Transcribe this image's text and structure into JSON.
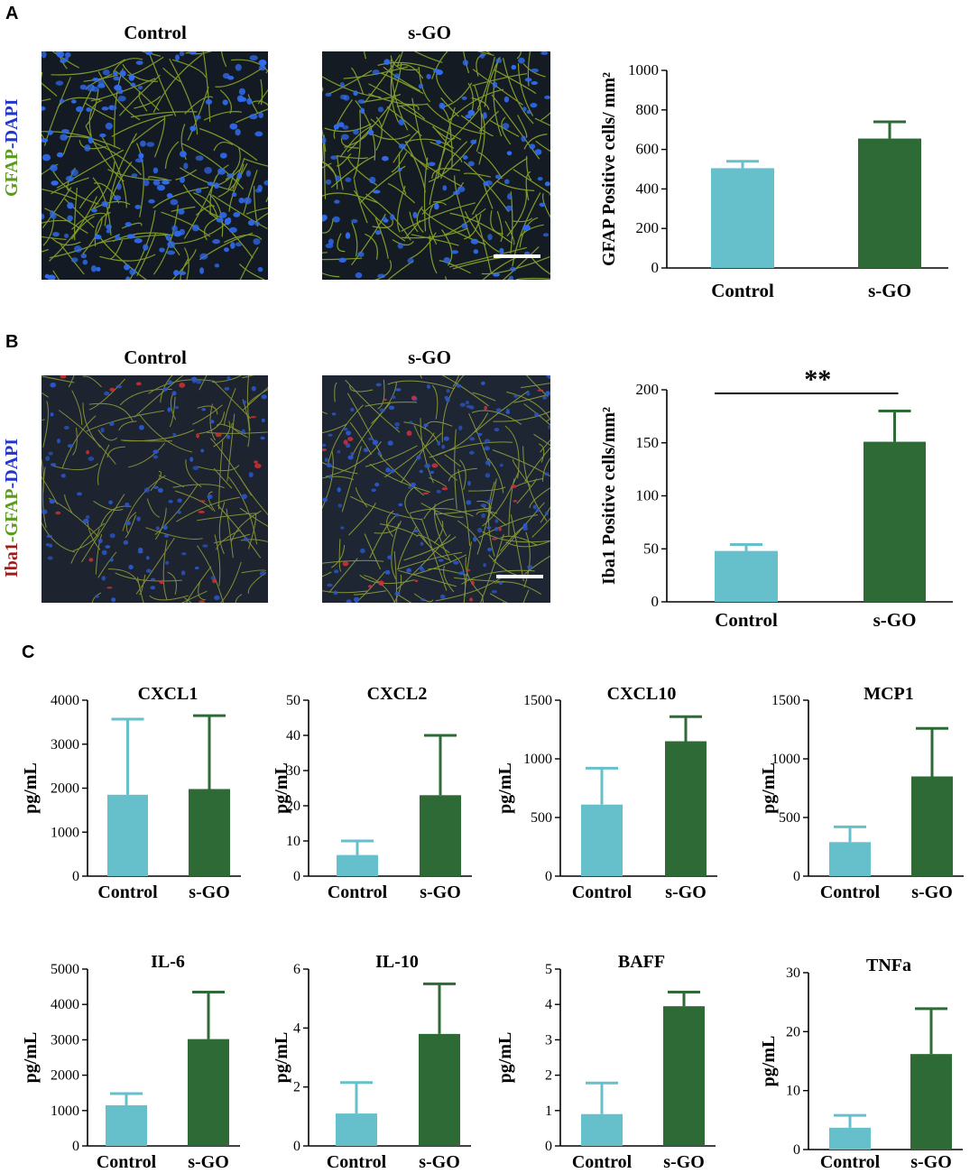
{
  "panels": {
    "a": {
      "letter": "A",
      "image_titles": [
        "Control",
        "s-GO"
      ],
      "stain": [
        {
          "text": "GFAP",
          "color": "#5a9a1f"
        },
        {
          "text": "-DAPI",
          "color": "#2135c8"
        }
      ]
    },
    "b": {
      "letter": "B",
      "image_titles": [
        "Control",
        "s-GO"
      ],
      "stain": [
        {
          "text": "Iba1",
          "color": "#9a1d1d"
        },
        {
          "text": "-",
          "color": "#5a9a1f"
        },
        {
          "text": "GFAP",
          "color": "#5a9a1f"
        },
        {
          "text": "-DAPI",
          "color": "#2135c8"
        }
      ]
    },
    "c": {
      "letter": "C"
    }
  },
  "colors": {
    "control": "#66c0cc",
    "sgo": "#2e6a35"
  },
  "chart_data": [
    {
      "id": "gfap",
      "type": "bar",
      "title": "",
      "ylabel": "GFAP Positive cells/ mm²",
      "categories": [
        "Control",
        "s-GO"
      ],
      "values": [
        505,
        655
      ],
      "errors": [
        35,
        85
      ],
      "ylim": [
        0,
        1000
      ],
      "yticks": [
        0,
        200,
        400,
        600,
        800,
        1000
      ],
      "ytick_labels": [
        "0",
        "200",
        "400",
        "600",
        "800",
        "1000"
      ]
    },
    {
      "id": "iba1",
      "type": "bar",
      "title": "",
      "ylabel": "Iba1 Positive cells/mm²",
      "categories": [
        "Control",
        "s-GO"
      ],
      "values": [
        48,
        151
      ],
      "errors": [
        6,
        29
      ],
      "ylim": [
        0,
        200
      ],
      "yticks": [
        0,
        50,
        100,
        150,
        200
      ],
      "ytick_labels": [
        "0",
        "50",
        "100",
        "150",
        "200"
      ],
      "significance": "**"
    },
    {
      "id": "cxcl1",
      "type": "bar",
      "title": "CXCL1",
      "ylabel": "pg/mL",
      "categories": [
        "Control",
        "s-GO"
      ],
      "values": [
        1850,
        1980
      ],
      "errors": [
        1720,
        1670
      ],
      "ylim": [
        0,
        4000
      ],
      "yticks": [
        0,
        1000,
        2000,
        3000,
        4000
      ],
      "ytick_labels": [
        "0",
        "1000",
        "2000",
        "3000",
        "4000"
      ]
    },
    {
      "id": "cxcl2",
      "type": "bar",
      "title": "CXCL2",
      "ylabel": "pg/mL",
      "categories": [
        "Control",
        "s-GO"
      ],
      "values": [
        6,
        23
      ],
      "errors": [
        4,
        17
      ],
      "ylim": [
        0,
        50
      ],
      "yticks": [
        0,
        10,
        20,
        30,
        40,
        50
      ],
      "ytick_labels": [
        "0",
        "10",
        "20",
        "30",
        "40",
        "50"
      ]
    },
    {
      "id": "cxcl10",
      "type": "bar",
      "title": "CXCL10",
      "ylabel": "pg/mL",
      "categories": [
        "Control",
        "s-GO"
      ],
      "values": [
        610,
        1150
      ],
      "errors": [
        310,
        210
      ],
      "ylim": [
        0,
        1500
      ],
      "yticks": [
        0,
        500,
        1000,
        1500
      ],
      "ytick_labels": [
        "0",
        "500",
        "1000",
        "1500"
      ]
    },
    {
      "id": "mcp1",
      "type": "bar",
      "title": "MCP1",
      "ylabel": "pg/mL",
      "categories": [
        "Control",
        "s-GO"
      ],
      "values": [
        290,
        850
      ],
      "errors": [
        130,
        410
      ],
      "ylim": [
        0,
        1500
      ],
      "yticks": [
        0,
        500,
        1000,
        1500
      ],
      "ytick_labels": [
        "0",
        "500",
        "1000",
        "1500"
      ]
    },
    {
      "id": "il6",
      "type": "bar",
      "title": "IL-6",
      "ylabel": "pg/mL",
      "categories": [
        "Control",
        "s-GO"
      ],
      "values": [
        1150,
        3020
      ],
      "errors": [
        330,
        1330
      ],
      "ylim": [
        0,
        5000
      ],
      "yticks": [
        0,
        1000,
        2000,
        3000,
        4000,
        5000
      ],
      "ytick_labels": [
        "0",
        "1000",
        "2000",
        "3000",
        "4000",
        "5000"
      ]
    },
    {
      "id": "il10",
      "type": "bar",
      "title": "IL-10",
      "ylabel": "pg/mL",
      "categories": [
        "Control",
        "s-GO"
      ],
      "values": [
        1.1,
        3.8
      ],
      "errors": [
        1.05,
        1.7
      ],
      "ylim": [
        0,
        6
      ],
      "yticks": [
        0,
        2,
        4,
        6
      ],
      "ytick_labels": [
        "0",
        "2",
        "4",
        "6"
      ]
    },
    {
      "id": "baff",
      "type": "bar",
      "title": "BAFF",
      "ylabel": "pg/mL",
      "categories": [
        "Control",
        "s-GO"
      ],
      "values": [
        0.9,
        3.95
      ],
      "errors": [
        0.88,
        0.4
      ],
      "ylim": [
        0,
        5
      ],
      "yticks": [
        0,
        1,
        2,
        3,
        4,
        5
      ],
      "ytick_labels": [
        "0",
        "1",
        "2",
        "3",
        "4",
        "5"
      ]
    },
    {
      "id": "tnfa",
      "type": "bar",
      "title": "TNFa",
      "ylabel": "pg/mL",
      "categories": [
        "Control",
        "s-GO"
      ],
      "values": [
        3.7,
        16.2
      ],
      "errors": [
        2.1,
        7.7
      ],
      "ylim": [
        0,
        30
      ],
      "yticks": [
        0,
        10,
        20,
        30
      ],
      "ytick_labels": [
        "0",
        "10",
        "20",
        "30"
      ]
    }
  ]
}
